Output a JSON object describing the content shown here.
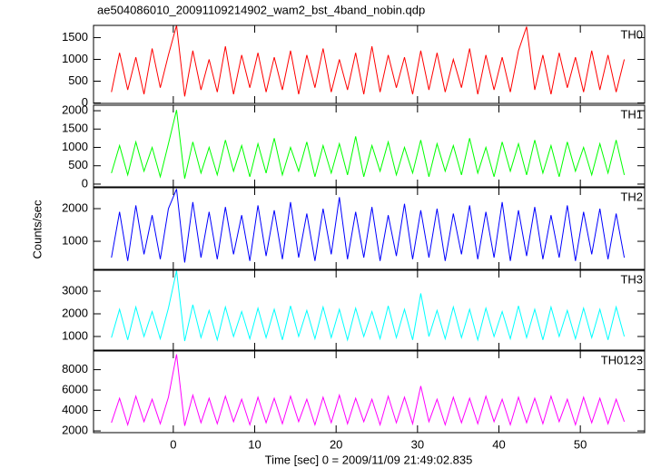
{
  "chart_data": {
    "type": "line",
    "title": "ae504086010_20091109214902_wam2_bst_4band_nobin.qdp",
    "xlabel": "Time [sec] 0 = 2009/11/09 21:49:02.835",
    "ylabel": "Counts/sec",
    "xlim": [
      -9.8,
      57.9
    ],
    "xticks": [
      0,
      10,
      20,
      30,
      40,
      50
    ],
    "x": [
      -7.6,
      -6.6,
      -5.6,
      -4.6,
      -3.6,
      -2.6,
      -1.6,
      -0.6,
      0.4,
      1.4,
      2.4,
      3.4,
      4.4,
      5.4,
      6.4,
      7.4,
      8.4,
      9.4,
      10.4,
      11.4,
      12.4,
      13.4,
      14.4,
      15.4,
      16.4,
      17.4,
      18.4,
      19.4,
      20.4,
      21.4,
      22.4,
      23.4,
      24.4,
      25.4,
      26.4,
      27.4,
      28.4,
      29.4,
      30.4,
      31.4,
      32.4,
      33.4,
      34.4,
      35.4,
      36.4,
      37.4,
      38.4,
      39.4,
      40.4,
      41.4,
      42.4,
      43.4,
      44.4,
      45.4,
      46.4,
      47.4,
      48.4,
      49.4,
      50.4,
      51.4,
      52.4,
      53.4,
      54.4,
      55.4
    ],
    "series": [
      {
        "name": "TH0",
        "color": "#ff0000",
        "ylim": [
          -10,
          1780
        ],
        "yticks": [
          0,
          500,
          1000,
          1500
        ],
        "values": [
          250,
          1150,
          300,
          1050,
          200,
          1250,
          350,
          1100,
          1780,
          150,
          1200,
          300,
          1000,
          250,
          1300,
          200,
          1100,
          350,
          1150,
          250,
          1050,
          300,
          1200,
          200,
          1100,
          350,
          1250,
          250,
          1000,
          300,
          1150,
          200,
          1300,
          250,
          1100,
          350,
          1050,
          200,
          1200,
          300,
          1150,
          250,
          1000,
          350,
          1250,
          200,
          1100,
          300,
          1050,
          250,
          1200,
          1750,
          300,
          1100,
          200,
          1150,
          350,
          1050,
          250,
          1200,
          300,
          1100,
          250,
          1000
        ]
      },
      {
        "name": "TH1",
        "color": "#00ff00",
        "ylim": [
          -75,
          2150
        ],
        "yticks": [
          0,
          500,
          1000,
          1500,
          2000
        ],
        "values": [
          300,
          1050,
          250,
          1150,
          350,
          1000,
          200,
          1100,
          2020,
          150,
          1150,
          300,
          1000,
          250,
          1200,
          350,
          1050,
          200,
          1100,
          300,
          1250,
          250,
          1000,
          350,
          1150,
          200,
          1050,
          300,
          1100,
          250,
          1300,
          200,
          1050,
          350,
          1150,
          250,
          1000,
          300,
          1200,
          200,
          1100,
          350,
          1050,
          250,
          1250,
          300,
          1000,
          200,
          1150,
          350,
          1100,
          250,
          1200,
          300,
          1050,
          200,
          1150,
          350,
          1000,
          250,
          1100,
          300,
          1200,
          250
        ]
      },
      {
        "name": "TH2",
        "color": "#0000ff",
        "ylim": [
          140,
          2640
        ],
        "yticks": [
          1000,
          2000
        ],
        "values": [
          500,
          1900,
          400,
          2100,
          600,
          1800,
          450,
          2000,
          2600,
          350,
          2200,
          500,
          1900,
          450,
          2050,
          600,
          1800,
          400,
          2100,
          550,
          1950,
          450,
          2200,
          500,
          1850,
          400,
          2000,
          600,
          2350,
          450,
          1900,
          500,
          2050,
          400,
          1800,
          550,
          2150,
          450,
          1950,
          500,
          2000,
          400,
          1850,
          600,
          2100,
          450,
          1900,
          500,
          2200,
          400,
          1950,
          550,
          2050,
          450,
          1800,
          500,
          2100,
          400,
          1900,
          600,
          2000,
          450,
          1850,
          500
        ]
      },
      {
        "name": "TH3",
        "color": "#00ffff",
        "ylim": [
          400,
          3920
        ],
        "yticks": [
          1000,
          2000,
          3000
        ],
        "values": [
          950,
          2200,
          850,
          2300,
          1000,
          2100,
          900,
          2250,
          3900,
          800,
          2400,
          950,
          2150,
          850,
          2300,
          1000,
          2100,
          900,
          2250,
          950,
          2200,
          850,
          2350,
          1000,
          2150,
          900,
          2300,
          950,
          2200,
          850,
          2250,
          1000,
          2100,
          900,
          2350,
          950,
          2200,
          850,
          2900,
          1000,
          2150,
          900,
          2300,
          950,
          2200,
          850,
          2250,
          1000,
          2100,
          900,
          2350,
          950,
          2200,
          850,
          2300,
          1000,
          2150,
          900,
          2250,
          950,
          2200,
          850,
          2300,
          1000
        ]
      },
      {
        "name": "TH0123",
        "color": "#ff00ff",
        "ylim": [
          1830,
          9830
        ],
        "yticks": [
          2000,
          4000,
          6000,
          8000
        ],
        "values": [
          2800,
          5200,
          2600,
          5400,
          2900,
          5100,
          2700,
          5300,
          9500,
          2500,
          5500,
          2800,
          5200,
          2700,
          5400,
          2900,
          5100,
          2600,
          5300,
          2800,
          5200,
          2700,
          5400,
          2900,
          5100,
          2600,
          5300,
          2800,
          5500,
          2700,
          5200,
          2900,
          5100,
          2600,
          5400,
          2800,
          5300,
          2700,
          6400,
          2900,
          5100,
          2600,
          5300,
          2800,
          5200,
          2700,
          5400,
          2900,
          5100,
          2600,
          5300,
          2800,
          5200,
          2700,
          5400,
          2900,
          5100,
          2600,
          5300,
          2800,
          5200,
          2700,
          5100,
          2900
        ]
      }
    ]
  }
}
